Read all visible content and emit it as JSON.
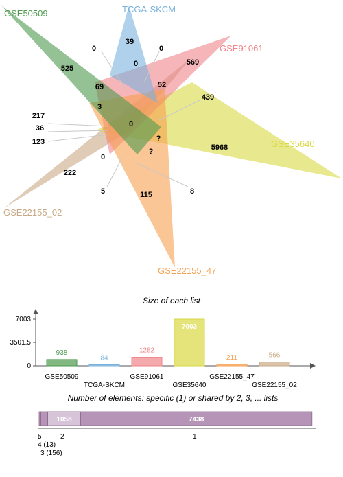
{
  "venn": {
    "sets": [
      {
        "name": "GSE50509",
        "color": "#4e9a4e"
      },
      {
        "name": "TCGA-SKCM",
        "color": "#79b2dd"
      },
      {
        "name": "GSE91061",
        "color": "#f0848a"
      },
      {
        "name": "GSE35640",
        "color": "#d9d843"
      },
      {
        "name": "GSE22155_47",
        "color": "#f7a050"
      },
      {
        "name": "GSE22155_02",
        "color": "#c9a985"
      }
    ],
    "counts": [
      "39",
      "0",
      "0",
      "0",
      "569",
      "525",
      "69",
      "52",
      "439",
      "3",
      "0",
      "217",
      "36",
      "123",
      "?",
      "5968",
      "0",
      "?",
      "222",
      "5",
      "115",
      "8"
    ]
  },
  "chart_data": [
    {
      "type": "bar",
      "title": "Size of each list",
      "categories": [
        "GSE50509",
        "TCGA-SKCM",
        "GSE91061",
        "GSE35640",
        "GSE22155_47",
        "GSE22155_02"
      ],
      "values": [
        938,
        84,
        1282,
        7003,
        211,
        566
      ],
      "value_labels": [
        "938",
        "84",
        "1282",
        "7003",
        "211",
        "566"
      ],
      "colors": [
        "#4e9a4e",
        "#79b2dd",
        "#f0848a",
        "#d9d843",
        "#f7a050",
        "#c9a985"
      ],
      "yticks": [
        "0",
        "3501.5",
        "7003"
      ],
      "ylim": [
        0,
        7003
      ]
    },
    {
      "type": "bar",
      "orientation": "horizontal-stacked",
      "title": "Number of elements: specific (1) or shared by 2, 3, ... lists",
      "segments": [
        {
          "label": "5",
          "value": 2
        },
        {
          "label": "4 (13)",
          "value": 13
        },
        {
          "label": "3 (156)",
          "value": 156
        },
        {
          "label": "2",
          "value": 1058
        },
        {
          "label": "1",
          "value": 7438
        }
      ],
      "inner_labels": [
        "1058",
        "7438"
      ],
      "color_main": "#b594b8",
      "color_light": "#d8c4d8"
    }
  ]
}
